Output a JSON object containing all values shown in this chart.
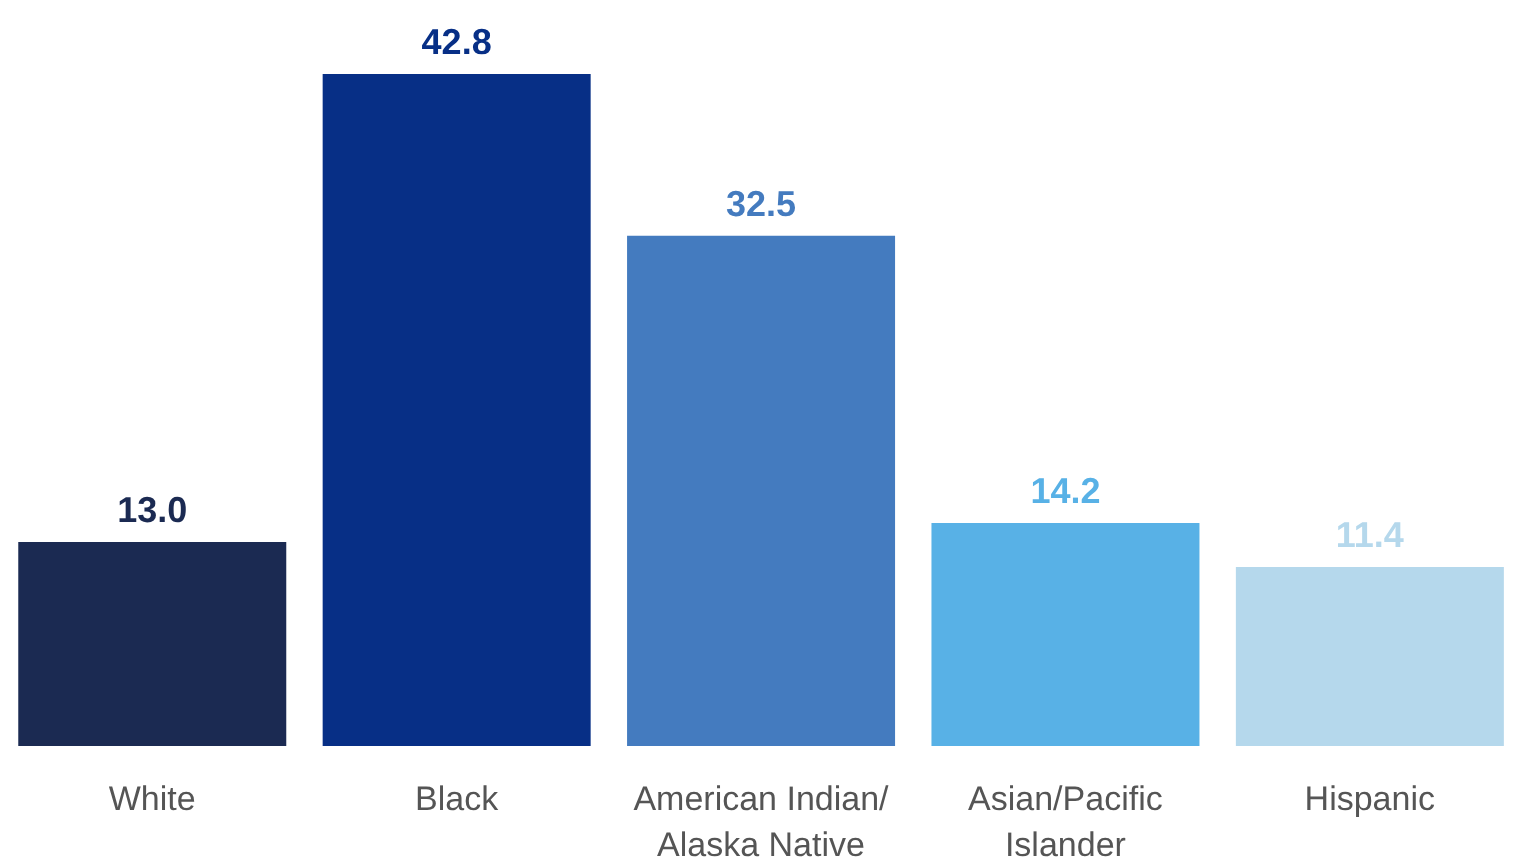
{
  "chart_data": {
    "type": "bar",
    "categories": [
      "White",
      "Black",
      "American Indian/ Alaska Native",
      "Asian/Pacific Islander",
      "Hispanic"
    ],
    "values": [
      13.0,
      42.8,
      32.5,
      14.2,
      11.4
    ],
    "colors": [
      "#1b2a52",
      "#072f86",
      "#447bbf",
      "#58b1e6",
      "#b5d8ec"
    ],
    "value_labels": [
      "13.0",
      "42.8",
      "32.5",
      "14.2",
      "11.4"
    ],
    "grid": false,
    "legend": false
  }
}
